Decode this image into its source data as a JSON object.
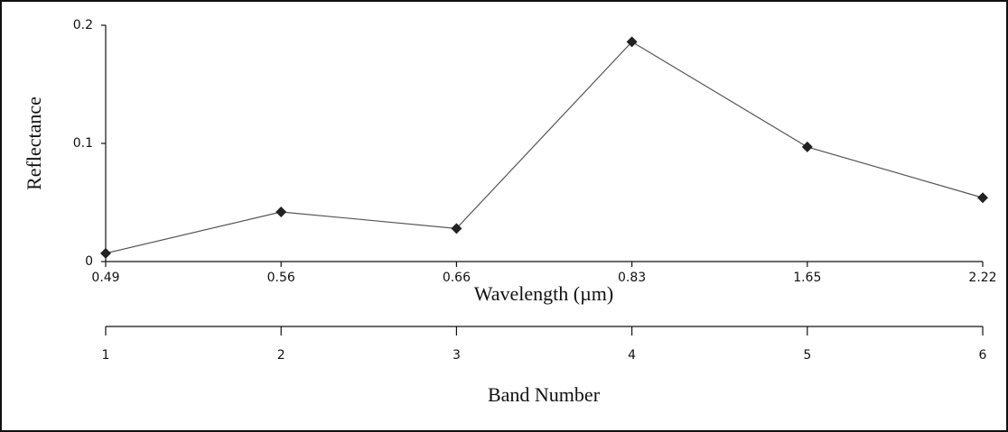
{
  "chart_data": {
    "type": "line",
    "y_label": "Reflectance",
    "x_label": "Wavelength (µm)",
    "categories": [
      "0.49",
      "0.56",
      "0.66",
      "0.83",
      "1.65",
      "2.22"
    ],
    "series": [
      {
        "color": "#222222",
        "values": [
          0.007,
          0.042,
          0.028,
          0.186,
          0.097,
          0.054
        ]
      }
    ],
    "ylim": [
      0,
      0.2
    ],
    "yticks": [
      0,
      0.1,
      0.2
    ],
    "band_label": "Band Number",
    "bands": [
      1,
      2,
      3,
      4,
      5,
      6
    ]
  }
}
